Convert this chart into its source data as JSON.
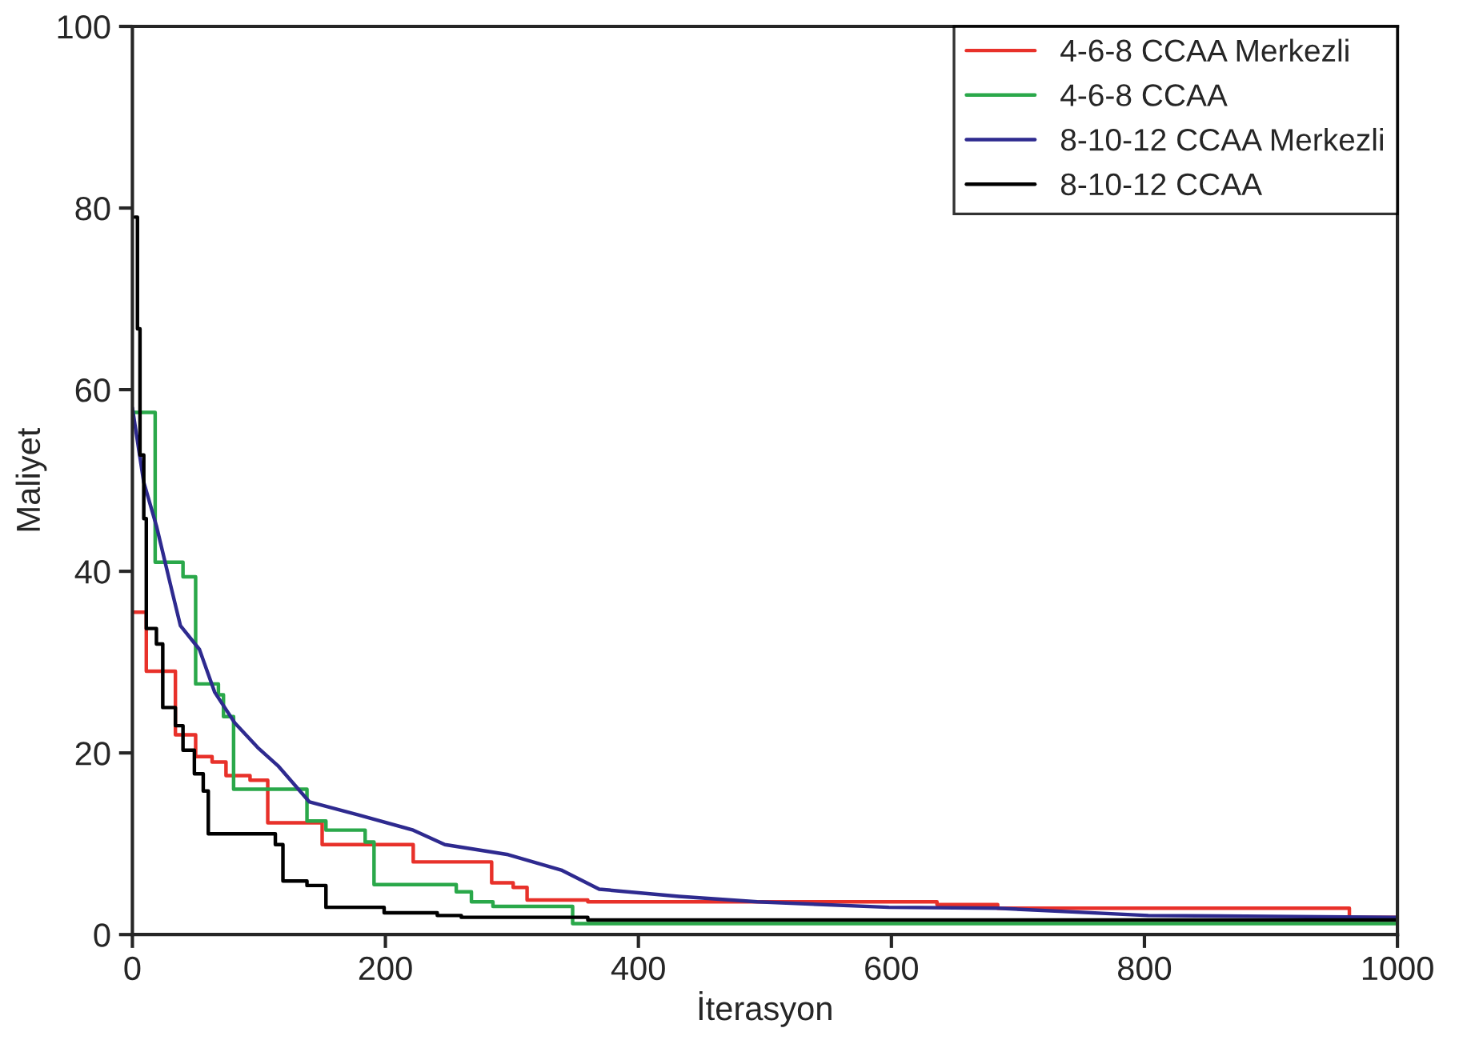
{
  "chart_data": {
    "type": "step",
    "xlabel": "İterasyon",
    "ylabel": "Maliyet",
    "xlim": [
      0,
      1000
    ],
    "ylim": [
      0,
      100
    ],
    "xticks": [
      0,
      200,
      400,
      600,
      800,
      1000
    ],
    "yticks": [
      0,
      20,
      40,
      60,
      80,
      100
    ],
    "grid": false,
    "legend": "top right",
    "series": [
      {
        "name": "4-6-8 CCAA Merkezli",
        "color": "#e8312a",
        "x": [
          0,
          11,
          34,
          50,
          63,
          74,
          93,
          107,
          150,
          222,
          284,
          301,
          312,
          360,
          636,
          684,
          962,
          1000
        ],
        "values": [
          35.5,
          29,
          22,
          19.6,
          19,
          17.5,
          17,
          12.3,
          9.9,
          8.0,
          5.7,
          5.2,
          3.8,
          3.6,
          3.3,
          2.9,
          1.9,
          1.9
        ]
      },
      {
        "name": "4-6-8 CCAA",
        "color": "#2aa84a",
        "x": [
          0,
          18,
          40,
          50,
          68,
          72,
          80,
          138,
          153,
          184,
          191,
          256,
          268,
          285,
          348,
          1000
        ],
        "values": [
          57.5,
          41,
          39.4,
          27.6,
          26.4,
          24,
          16,
          12.5,
          11.5,
          10.2,
          5.5,
          4.7,
          3.6,
          3.1,
          1.2,
          1.2
        ]
      },
      {
        "name": "8-10-12 CCAA Merkezli",
        "color": "#2e2a8f",
        "type": "line",
        "x": [
          0,
          9,
          19,
          31,
          38,
          53,
          65,
          81,
          99,
          115,
          140,
          178,
          222,
          247,
          297,
          339,
          369,
          432,
          494,
          598,
          684,
          803,
          1000
        ],
        "values": [
          58,
          49.8,
          45,
          38,
          34,
          31.4,
          26.7,
          23.3,
          20.6,
          18.6,
          14.6,
          13.2,
          11.5,
          9.9,
          8.8,
          7.1,
          5.0,
          4.2,
          3.6,
          3.0,
          2.9,
          2.1,
          1.9
        ]
      },
      {
        "name": "8-10-12 CCAA",
        "color": "#000000",
        "x": [
          2,
          4,
          6,
          9,
          11,
          19,
          24,
          34,
          40,
          49,
          56,
          60,
          113,
          119,
          138,
          153,
          199,
          241,
          260,
          360,
          1000
        ],
        "values": [
          79,
          66.7,
          52.8,
          45.8,
          33.7,
          32,
          25,
          23,
          20.3,
          17.7,
          15.8,
          11.1,
          9.9,
          5.9,
          5.4,
          3.0,
          2.4,
          2.1,
          1.9,
          1.6,
          1.6
        ]
      }
    ]
  }
}
